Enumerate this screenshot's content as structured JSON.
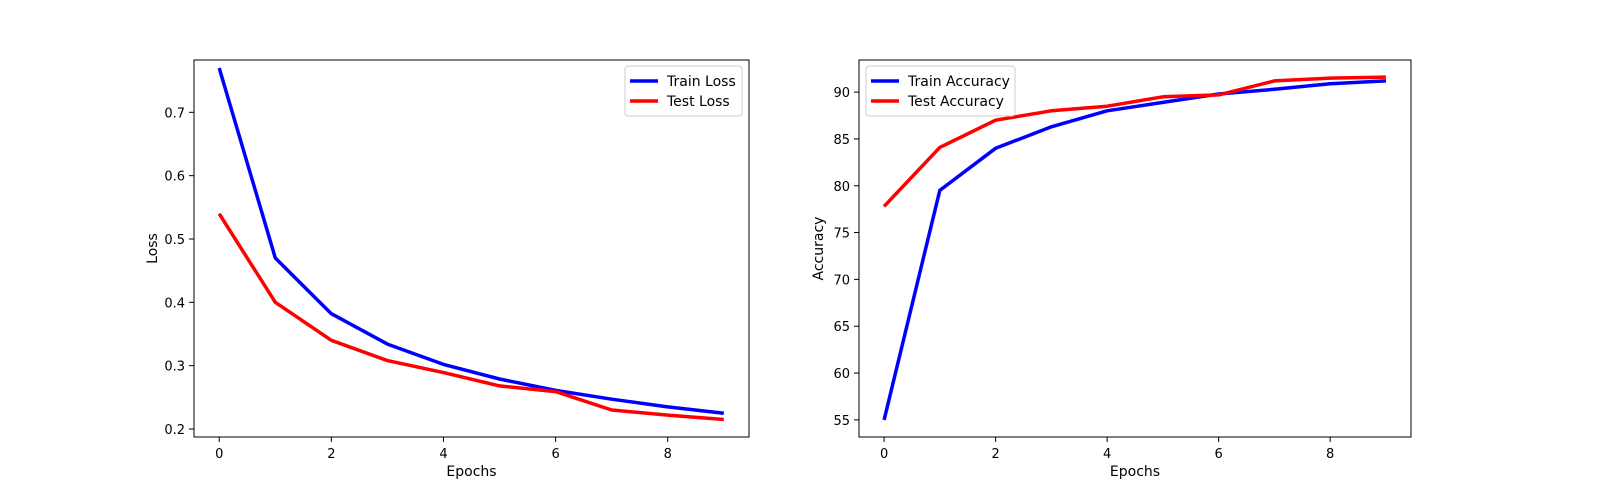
{
  "chart_data": [
    {
      "type": "line",
      "title": "",
      "xlabel": "Epochs",
      "ylabel": "Loss",
      "xlim": [
        -0.45,
        9.45
      ],
      "ylim": [
        0.1874,
        0.7826
      ],
      "xticks": [
        0,
        2,
        4,
        6,
        8
      ],
      "yticks": [
        0.2,
        0.3,
        0.4,
        0.5,
        0.6,
        0.7
      ],
      "grid": false,
      "legend_position": "upper right",
      "x": [
        0,
        1,
        2,
        3,
        4,
        5,
        6,
        7,
        8,
        9
      ],
      "series": [
        {
          "name": "Train Loss",
          "color": "#0000ff",
          "values": [
            0.77,
            0.47,
            0.382,
            0.334,
            0.302,
            0.279,
            0.261,
            0.247,
            0.235,
            0.225
          ]
        },
        {
          "name": "Test Loss",
          "color": "#ff0000",
          "values": [
            0.54,
            0.4,
            0.34,
            0.308,
            0.289,
            0.268,
            0.259,
            0.23,
            0.222,
            0.215
          ]
        }
      ]
    },
    {
      "type": "line",
      "title": "",
      "xlabel": "Epochs",
      "ylabel": "Accuracy",
      "xlim": [
        -0.45,
        9.45
      ],
      "ylim": [
        53.17,
        93.43
      ],
      "xticks": [
        0,
        2,
        4,
        6,
        8
      ],
      "yticks": [
        55,
        60,
        65,
        70,
        75,
        80,
        85,
        90
      ],
      "grid": false,
      "legend_position": "upper left",
      "x": [
        0,
        1,
        2,
        3,
        4,
        5,
        6,
        7,
        8,
        9
      ],
      "series": [
        {
          "name": "Train Accuracy",
          "color": "#0000ff",
          "values": [
            55.0,
            79.5,
            84.0,
            86.3,
            88.0,
            88.9,
            89.8,
            90.3,
            90.9,
            91.2
          ]
        },
        {
          "name": "Test Accuracy",
          "color": "#ff0000",
          "values": [
            77.8,
            84.1,
            87.0,
            88.0,
            88.5,
            89.5,
            89.7,
            91.2,
            91.5,
            91.6
          ]
        }
      ]
    }
  ]
}
